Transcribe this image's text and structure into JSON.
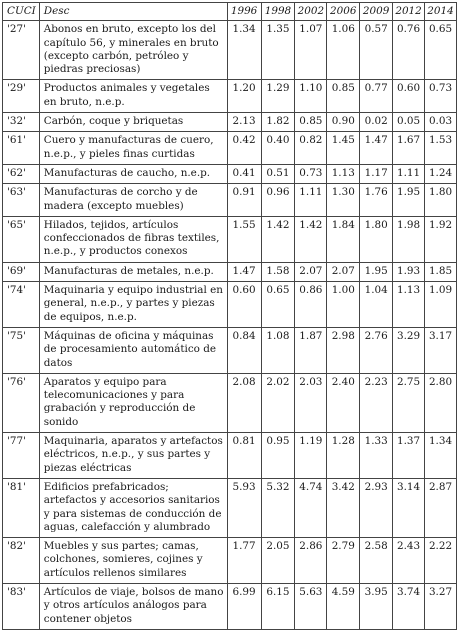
{
  "table": {
    "headers": [
      "CUCI",
      "Desc",
      "1996",
      "1998",
      "2002",
      "2006",
      "2009",
      "2012",
      "2014"
    ],
    "rows": [
      {
        "code": "'27'",
        "desc": "Abonos en bruto, excepto los del capítulo 56, y minerales en bruto (excepto carbón, petróleo y piedras preciosas)",
        "values": [
          "1.34",
          "1.35",
          "1.07",
          "1.06",
          "0.57",
          "0.76",
          "0.65"
        ]
      },
      {
        "code": "'29'",
        "desc": "Productos animales y vegetales en bruto, n.e.p.",
        "values": [
          "1.20",
          "1.29",
          "1.10",
          "0.85",
          "0.77",
          "0.60",
          "0.73"
        ]
      },
      {
        "code": "'32'",
        "desc": "Carbón, coque y briquetas",
        "values": [
          "2.13",
          "1.82",
          "0.85",
          "0.90",
          "0.02",
          "0.05",
          "0.03"
        ]
      },
      {
        "code": "'61'",
        "desc": "Cuero y manufacturas de cuero, n.e.p., y pieles finas curtidas",
        "values": [
          "0.42",
          "0.40",
          "0.82",
          "1.45",
          "1.47",
          "1.67",
          "1.53"
        ]
      },
      {
        "code": "'62'",
        "desc": "Manufacturas de caucho, n.e.p.",
        "values": [
          "0.41",
          "0.51",
          "0.73",
          "1.13",
          "1.17",
          "1.11",
          "1.24"
        ]
      },
      {
        "code": "'63'",
        "desc": "Manufacturas de corcho y de madera (excepto muebles)",
        "values": [
          "0.91",
          "0.96",
          "1.11",
          "1.30",
          "1.76",
          "1.95",
          "1.80"
        ]
      },
      {
        "code": "'65'",
        "desc": "Hilados, tejidos, artículos confeccionados de fibras textiles, n.e.p., y productos conexos",
        "values": [
          "1.55",
          "1.42",
          "1.42",
          "1.84",
          "1.80",
          "1.98",
          "1.92"
        ]
      },
      {
        "code": "'69'",
        "desc": "Manufacturas de metales, n.e.p.",
        "values": [
          "1.47",
          "1.58",
          "2.07",
          "2.07",
          "1.95",
          "1.93",
          "1.85"
        ]
      },
      {
        "code": "'74'",
        "desc": "Maquinaria y equipo industrial en general, n.e.p., y partes y piezas de equipos, n.e.p.",
        "values": [
          "0.60",
          "0.65",
          "0.86",
          "1.00",
          "1.04",
          "1.13",
          "1.09"
        ]
      },
      {
        "code": "'75'",
        "desc": "Máquinas de oficina y máquinas de procesamiento automático de datos",
        "values": [
          "0.84",
          "1.08",
          "1.87",
          "2.98",
          "2.76",
          "3.29",
          "3.17"
        ]
      },
      {
        "code": "'76'",
        "desc": "Aparatos y equipo para telecomunicaciones y para grabación y reproducción de sonido",
        "values": [
          "2.08",
          "2.02",
          "2.03",
          "2.40",
          "2.23",
          "2.75",
          "2.80"
        ]
      },
      {
        "code": "'77'",
        "desc": "Maquinaria, aparatos y artefactos eléctricos, n.e.p., y sus partes y piezas eléctricas",
        "values": [
          "0.81",
          "0.95",
          "1.19",
          "1.28",
          "1.33",
          "1.37",
          "1.34"
        ]
      },
      {
        "code": "'81'",
        "desc": "Edificios prefabricados; artefactos y accesorios sanitarios y para sistemas de conducción de aguas, calefacción y alumbrado",
        "values": [
          "5.93",
          "5.32",
          "4.74",
          "3.42",
          "2.93",
          "3.14",
          "2.87"
        ]
      },
      {
        "code": "'82'",
        "desc": "Muebles y sus partes; camas, colchones, somieres, cojines y artículos rellenos similares",
        "values": [
          "1.77",
          "2.05",
          "2.86",
          "2.79",
          "2.58",
          "2.43",
          "2.22"
        ]
      },
      {
        "code": "'83'",
        "desc": "Artículos de viaje, bolsos de mano y otros artículos análogos para contener objetos",
        "values": [
          "6.99",
          "6.15",
          "5.63",
          "4.59",
          "3.95",
          "3.74",
          "3.27"
        ]
      }
    ]
  }
}
